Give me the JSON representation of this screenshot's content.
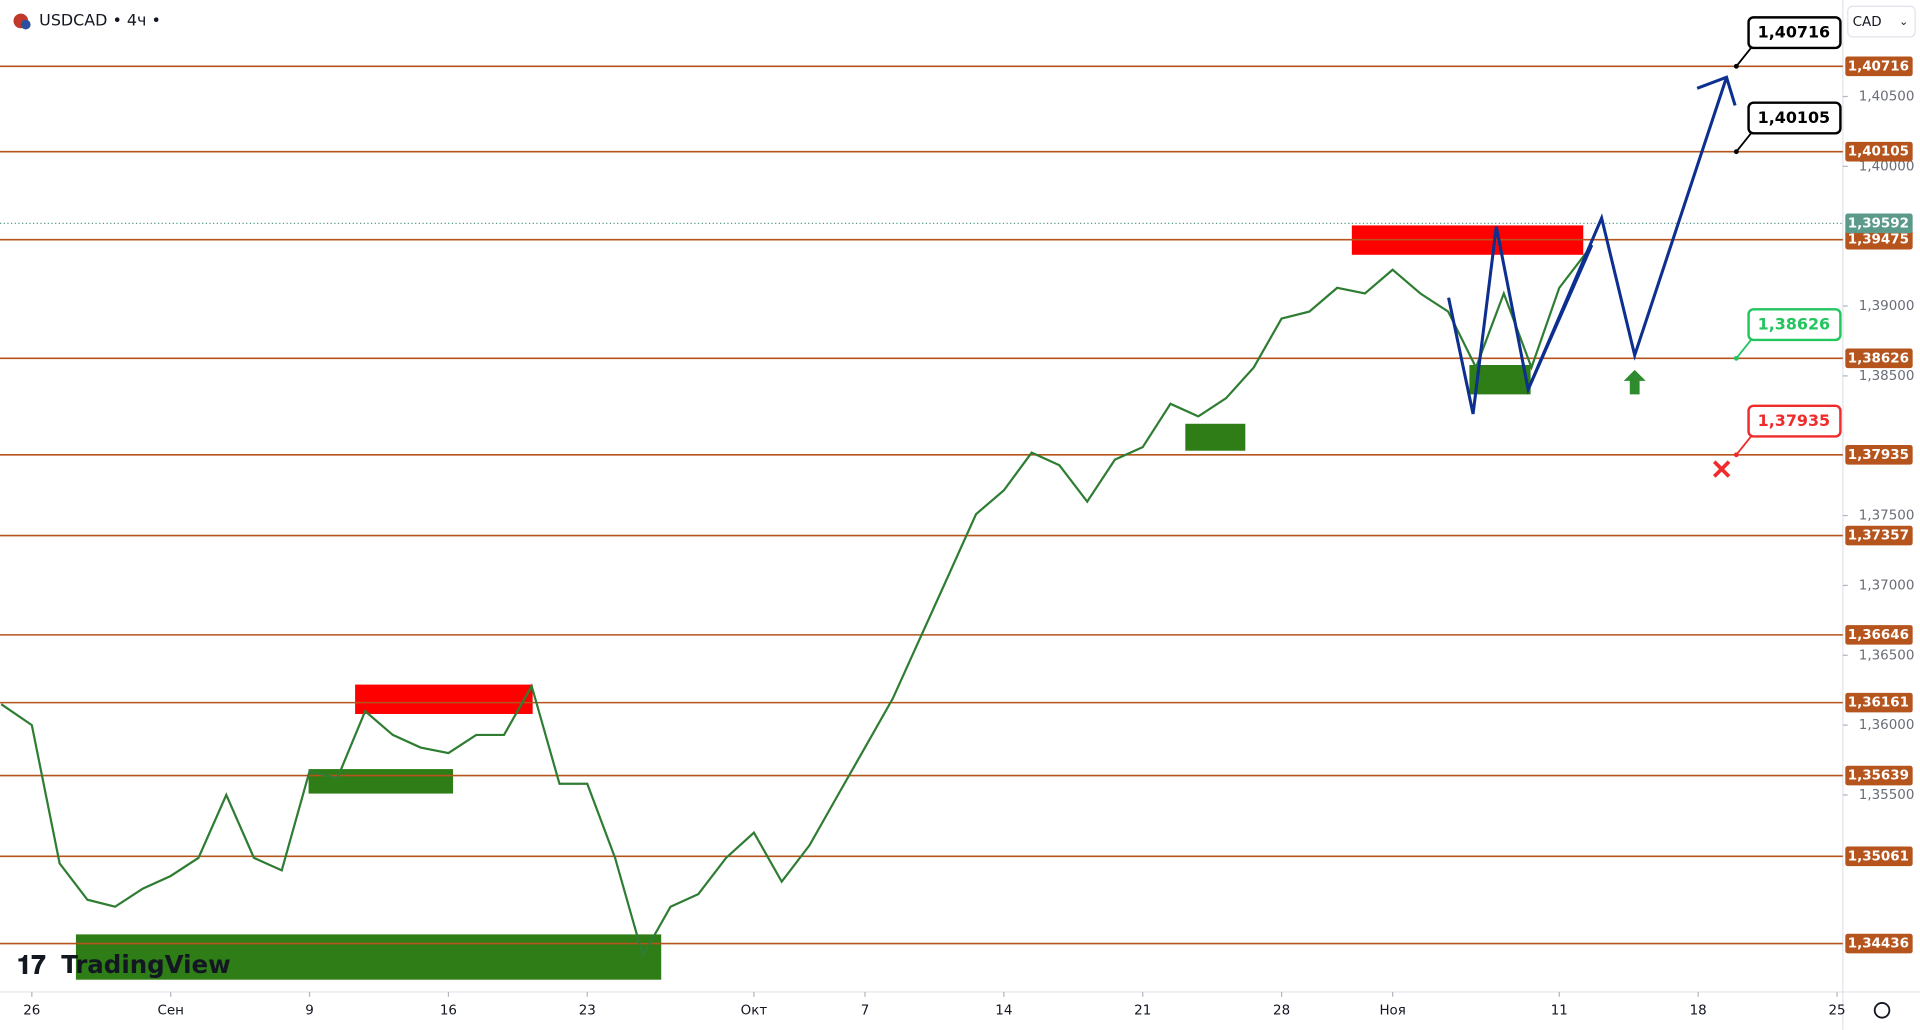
{
  "header": {
    "symbol": "USDCAD • 4ч •",
    "currency": "CAD",
    "brand": "TradingView"
  },
  "chart_data": {
    "type": "line",
    "color": "#2e7d32",
    "x": [
      -1.1,
      0,
      1,
      2,
      3,
      4,
      5,
      6,
      7,
      8,
      9,
      10,
      11,
      12,
      13,
      14,
      15,
      16,
      17,
      18,
      19,
      20,
      21,
      22,
      23,
      24,
      25,
      26,
      27,
      28,
      29,
      30,
      31,
      32,
      33,
      34,
      35,
      36,
      37,
      38,
      39,
      40,
      41,
      42,
      43,
      44,
      45,
      46,
      47,
      48,
      49,
      50,
      51,
      52,
      53,
      54,
      55,
      56
    ],
    "values": [
      1.3615,
      1.36,
      1.3501,
      1.3475,
      1.347,
      1.3483,
      1.3492,
      1.3505,
      1.355,
      1.3505,
      1.3496,
      1.3567,
      1.3562,
      1.361,
      1.3593,
      1.3584,
      1.358,
      1.3593,
      1.3593,
      1.3628,
      1.3558,
      1.3558,
      1.3505,
      1.3435,
      1.347,
      1.3479,
      1.3505,
      1.3523,
      1.3488,
      1.3514,
      1.3549,
      1.3584,
      1.3619,
      1.3663,
      1.3707,
      1.3751,
      1.3768,
      1.3795,
      1.3786,
      1.376,
      1.379,
      1.3799,
      1.383,
      1.3821,
      1.3834,
      1.3856,
      1.3891,
      1.3896,
      1.3913,
      1.3909,
      1.3926,
      1.3909,
      1.3896,
      1.3856,
      1.3909,
      1.3856,
      1.3913,
      1.3939
    ],
    "xlim": [
      -1.146,
      65.21
    ],
    "ylim": [
      1.3409,
      1.4119
    ],
    "xticks": [
      {
        "value": 0,
        "label": "26"
      },
      {
        "value": 5,
        "label": "Сен"
      },
      {
        "value": 10,
        "label": "9"
      },
      {
        "value": 15,
        "label": "16"
      },
      {
        "value": 20,
        "label": "23"
      },
      {
        "value": 26,
        "label": "Окт"
      },
      {
        "value": 30,
        "label": "7"
      },
      {
        "value": 35,
        "label": "14"
      },
      {
        "value": 40,
        "label": "21"
      },
      {
        "value": 45,
        "label": "28"
      },
      {
        "value": 49,
        "label": "Ноя"
      },
      {
        "value": 55,
        "label": "11"
      },
      {
        "value": 60,
        "label": "18"
      },
      {
        "value": 65,
        "label": "25"
      }
    ],
    "yticks": [
      {
        "value": 1.405,
        "label": "1,40500"
      },
      {
        "value": 1.4,
        "label": "1,40000"
      },
      {
        "value": 1.39,
        "label": "1,39000"
      },
      {
        "value": 1.385,
        "label": "1,38500"
      },
      {
        "value": 1.375,
        "label": "1,37500"
      },
      {
        "value": 1.37,
        "label": "1,37000"
      },
      {
        "value": 1.365,
        "label": "1,36500"
      },
      {
        "value": 1.36,
        "label": "1,36000"
      },
      {
        "value": 1.355,
        "label": "1,35500"
      }
    ],
    "levels": [
      {
        "value": 1.40716,
        "label": "1,40716"
      },
      {
        "value": 1.40105,
        "label": "1,40105"
      },
      {
        "value": 1.39475,
        "label": "1,39475"
      },
      {
        "value": 1.38626,
        "label": "1,38626"
      },
      {
        "value": 1.37935,
        "label": "1,37935"
      },
      {
        "value": 1.37357,
        "label": "1,37357"
      },
      {
        "value": 1.36646,
        "label": "1,36646"
      },
      {
        "value": 1.36161,
        "label": "1,36161"
      },
      {
        "value": 1.35639,
        "label": "1,35639"
      },
      {
        "value": 1.35061,
        "label": "1,35061"
      },
      {
        "value": 1.34436,
        "label": "1,34436"
      }
    ],
    "level_color": "#b5541c",
    "current_price": {
      "value": 1.39592,
      "label": "1,39592",
      "color": "#5b9a8b"
    },
    "annotations": [
      {
        "value": 1.40716,
        "label": "1,40716",
        "color": "#000000"
      },
      {
        "value": 1.40105,
        "label": "1,40105",
        "color": "#000000"
      },
      {
        "value": 1.38626,
        "label": "1,38626",
        "color": "#22c55e"
      },
      {
        "value": 1.37935,
        "label": "1,37935",
        "color": "#ef2b2b"
      }
    ]
  }
}
